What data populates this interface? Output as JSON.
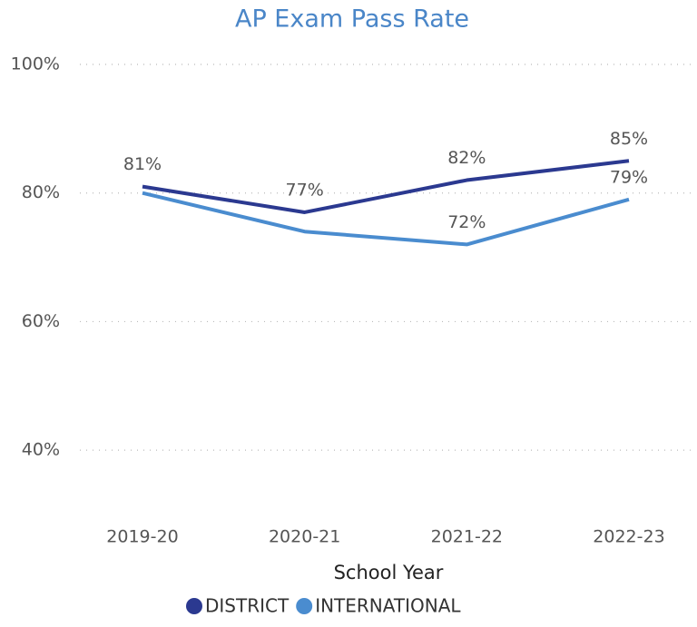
{
  "chart_data": {
    "type": "line",
    "title": "AP Exam Pass Rate",
    "xlabel": "School Year",
    "categories": [
      "2019-20",
      "2020-21",
      "2021-22",
      "2022-23"
    ],
    "series": [
      {
        "name": "DISTRICT",
        "color": "#2b3990",
        "values": [
          81,
          77,
          82,
          85
        ],
        "value_labels": [
          "81%",
          "77%",
          "82%",
          "85%"
        ]
      },
      {
        "name": "INTERNATIONAL",
        "color": "#4a8ccf",
        "values": [
          80,
          74,
          72,
          79
        ],
        "value_labels": [
          null,
          null,
          "72%",
          "79%"
        ]
      }
    ],
    "ylim": [
      30,
      100
    ],
    "yticks": [
      {
        "value": 40,
        "label": "40%"
      },
      {
        "value": 60,
        "label": "60%"
      },
      {
        "value": 80,
        "label": "80%"
      },
      {
        "value": 100,
        "label": "100%"
      }
    ],
    "grid": true,
    "legend": "bottom"
  }
}
